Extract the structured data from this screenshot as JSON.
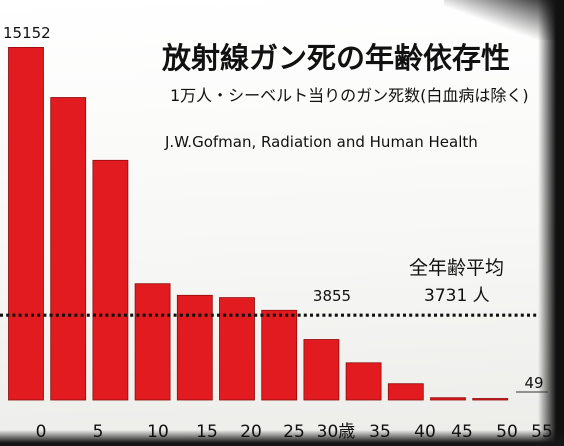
{
  "chart_data": {
    "type": "bar",
    "title": "放射線ガン死の年齢依存性",
    "subtitle": "1万人・シーベルト当りのガン死数(白血病は除く)",
    "source": "J.W.Gofman, Radiation and Human Health",
    "categories": [
      "0",
      "5",
      "10",
      "15",
      "20",
      "25",
      "30歳",
      "35",
      "40",
      "45",
      "50",
      "55"
    ],
    "values": [
      15152,
      13000,
      10300,
      5000,
      4500,
      4400,
      3855,
      2600,
      1600,
      700,
      100,
      49
    ],
    "ylim": [
      0,
      15300
    ],
    "data_labels": [
      {
        "index": 0,
        "text": "15152"
      },
      {
        "index": 6,
        "text": "3855"
      },
      {
        "index": 11,
        "text": "49"
      }
    ],
    "average": {
      "value": 3731,
      "label": "全年齢平均",
      "value_text": "3731 人"
    },
    "colors": {
      "bar": "#e11b1f",
      "bar_edge": "#8e0a0c",
      "average_line": "#111111"
    }
  }
}
